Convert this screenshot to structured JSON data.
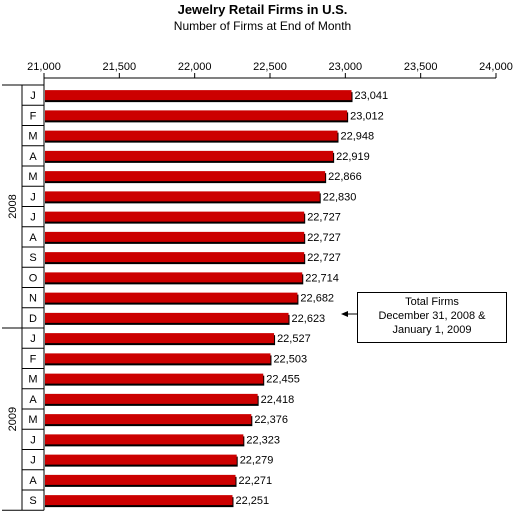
{
  "chart_data": {
    "type": "bar",
    "orientation": "horizontal",
    "title": "Jewelry Retail Firms in U.S.",
    "subtitle": "Number of Firms at End of Month",
    "xlim": [
      21000,
      24000
    ],
    "x_ticks": [
      "21,000",
      "21,500",
      "22,000",
      "22,500",
      "23,000",
      "23,500",
      "24,000"
    ],
    "x_tick_values": [
      21000,
      21500,
      22000,
      22500,
      23000,
      23500,
      24000
    ],
    "bar_color": "#cc0000",
    "groups": [
      {
        "label": "2008",
        "categories": [
          "J",
          "F",
          "M",
          "A",
          "M",
          "J",
          "J",
          "A",
          "S",
          "O",
          "N",
          "D"
        ]
      },
      {
        "label": "2009",
        "categories": [
          "J",
          "F",
          "M",
          "A",
          "M",
          "J",
          "J",
          "A",
          "S"
        ]
      }
    ],
    "values": [
      23041,
      23012,
      22948,
      22919,
      22866,
      22830,
      22727,
      22727,
      22727,
      22714,
      22682,
      22623,
      22527,
      22503,
      22455,
      22418,
      22376,
      22323,
      22279,
      22271,
      22251
    ],
    "value_labels": [
      "23,041",
      "23,012",
      "22,948",
      "22,919",
      "22,866",
      "22,830",
      "22,727",
      "22,727",
      "22,727",
      "22,714",
      "22,682",
      "22,623",
      "22,527",
      "22,503",
      "22,455",
      "22,418",
      "22,376",
      "22,323",
      "22,279",
      "22,271",
      "22,251"
    ],
    "annotation": {
      "lines": [
        "Total Firms",
        "December 31, 2008 &",
        "January 1, 2009"
      ]
    }
  }
}
